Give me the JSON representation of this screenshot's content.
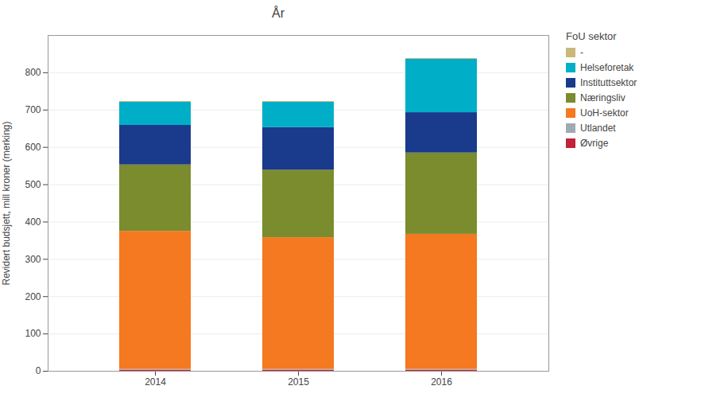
{
  "chart_data": {
    "type": "bar",
    "stacked": true,
    "title": "År",
    "ylabel": "Revidert budsjett, mill kroner (merking)",
    "legend_title": "FoU sektor",
    "legend": "right",
    "categories": [
      "2014",
      "2015",
      "2016"
    ],
    "series": [
      {
        "name": "Øvrige",
        "color": "#c0233a",
        "values": [
          3,
          3,
          3
        ]
      },
      {
        "name": "Utlandet",
        "color": "#a0aab4",
        "values": [
          2,
          2,
          2
        ]
      },
      {
        "name": "UoH-sektor",
        "color": "#f47920",
        "values": [
          370,
          353,
          362
        ]
      },
      {
        "name": "Næringsliv",
        "color": "#7b8c2e",
        "values": [
          178,
          181,
          218
        ]
      },
      {
        "name": "Instituttsektor",
        "color": "#1a3a8c",
        "values": [
          106,
          114,
          108
        ]
      },
      {
        "name": "Helseforetak",
        "color": "#00aec7",
        "values": [
          62,
          68,
          143
        ]
      },
      {
        "name": "-",
        "color": "#c8b87a",
        "values": [
          2,
          2,
          2
        ]
      }
    ],
    "ylim": [
      0,
      900
    ],
    "yticks": [
      0,
      100,
      200,
      300,
      400,
      500,
      600,
      700,
      800
    ],
    "grid": true
  }
}
